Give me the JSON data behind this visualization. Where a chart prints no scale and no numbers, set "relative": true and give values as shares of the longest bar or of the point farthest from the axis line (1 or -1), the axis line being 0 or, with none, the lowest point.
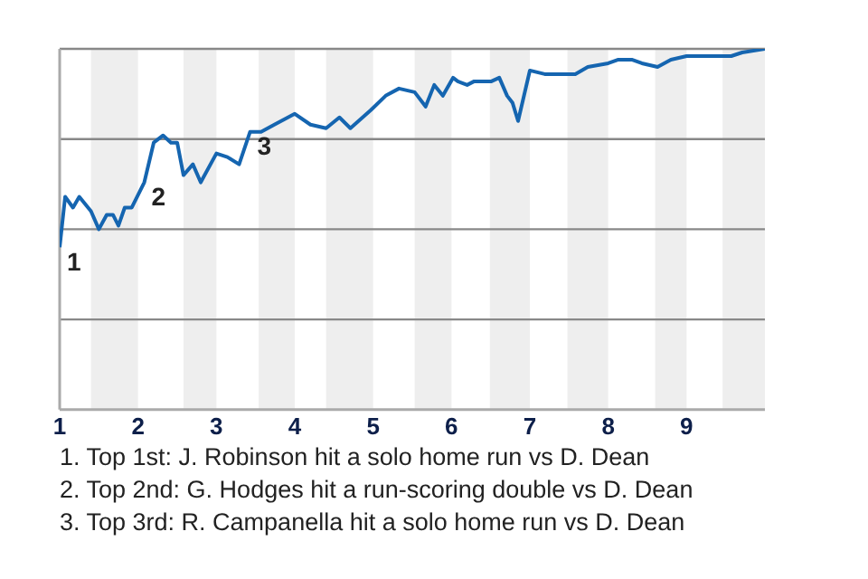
{
  "chart_data": {
    "type": "line",
    "relative": true,
    "marker": "none",
    "x": [
      1.0,
      1.07,
      1.17,
      1.25,
      1.4,
      1.5,
      1.6,
      1.68,
      1.75,
      1.83,
      1.92,
      2.08,
      2.2,
      2.32,
      2.42,
      2.5,
      2.58,
      2.7,
      2.8,
      3.0,
      3.14,
      3.29,
      3.43,
      3.57,
      3.74,
      4.0,
      4.2,
      4.4,
      4.57,
      4.71,
      4.97,
      5.16,
      5.33,
      5.53,
      5.67,
      5.78,
      5.89,
      6.02,
      6.08,
      6.2,
      6.29,
      6.51,
      6.61,
      6.71,
      6.78,
      6.85,
      7.0,
      7.19,
      7.42,
      7.58,
      7.74,
      8.0,
      8.13,
      8.3,
      8.43,
      8.63,
      8.8,
      9.0,
      9.2,
      9.57,
      9.71,
      10.0
    ],
    "series": [
      {
        "color": "#1565b0",
        "values": [
          0.45,
          0.59,
          0.56,
          0.59,
          0.55,
          0.5,
          0.54,
          0.54,
          0.51,
          0.56,
          0.56,
          0.63,
          0.74,
          0.76,
          0.74,
          0.74,
          0.65,
          0.68,
          0.63,
          0.71,
          0.7,
          0.68,
          0.77,
          0.77,
          0.79,
          0.82,
          0.79,
          0.78,
          0.81,
          0.78,
          0.83,
          0.87,
          0.89,
          0.88,
          0.84,
          0.9,
          0.87,
          0.92,
          0.91,
          0.9,
          0.91,
          0.91,
          0.92,
          0.87,
          0.85,
          0.8,
          0.94,
          0.93,
          0.93,
          0.93,
          0.95,
          0.96,
          0.97,
          0.97,
          0.96,
          0.95,
          0.97,
          0.98,
          0.98,
          0.98,
          0.99,
          1.0
        ]
      }
    ],
    "xlim": [
      1,
      10
    ],
    "xticks": [
      1,
      2,
      3,
      4,
      5,
      6,
      7,
      8,
      9
    ],
    "bands": [
      {
        "axis": "x",
        "from": 1.4,
        "to": 2,
        "color": "#eeeeee"
      },
      {
        "axis": "x",
        "from": 2.58,
        "to": 3,
        "color": "#eeeeee"
      },
      {
        "axis": "x",
        "from": 3.54,
        "to": 4,
        "color": "#eeeeee"
      },
      {
        "axis": "x",
        "from": 4.4,
        "to": 5,
        "color": "#eeeeee"
      },
      {
        "axis": "x",
        "from": 5.53,
        "to": 6,
        "color": "#eeeeee"
      },
      {
        "axis": "x",
        "from": 6.49,
        "to": 7,
        "color": "#eeeeee"
      },
      {
        "axis": "x",
        "from": 7.48,
        "to": 8,
        "color": "#eeeeee"
      },
      {
        "axis": "x",
        "from": 8.6,
        "to": 9,
        "color": "#eeeeee"
      },
      {
        "axis": "x",
        "from": 9.46,
        "to": 10,
        "color": "#eeeeee"
      }
    ],
    "ref_lines": [
      {
        "axis": "y",
        "value": 0.25,
        "color": "#888888"
      },
      {
        "axis": "y",
        "value": 0.5,
        "color": "#888888"
      },
      {
        "axis": "y",
        "value": 0.75,
        "color": "#888888"
      },
      {
        "axis": "y",
        "value": 1,
        "color": "#888888"
      }
    ],
    "annotations": [
      {
        "text": "1",
        "x": 1.0,
        "y": 0.45
      },
      {
        "text": "2",
        "x": 2.08,
        "y": 0.63
      },
      {
        "text": "3",
        "x": 3.43,
        "y": 0.77
      },
      "1. Top 1st: J. Robinson hit a solo home run vs D. Dean",
      "2. Top 2nd: G. Hodges hit a run-scoring double vs D. Dean",
      "3. Top 3rd: R. Campanella hit a solo home run vs D. Dean"
    ],
    "grid": false,
    "legend": false
  }
}
